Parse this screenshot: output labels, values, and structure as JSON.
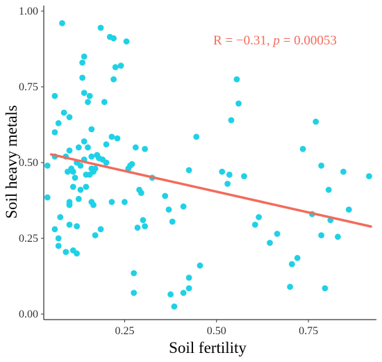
{
  "chart_data": {
    "type": "scatter",
    "xlabel": "Soil fertility",
    "ylabel": "Soil heavy metals",
    "xlim": [
      0.03,
      0.935
    ],
    "ylim": [
      0.0,
      1.0
    ],
    "xticks": [
      0.25,
      0.5,
      0.75
    ],
    "xtick_labels": [
      "0.25",
      "0.50",
      "0.75"
    ],
    "yticks": [
      0.0,
      0.25,
      0.5,
      0.75,
      1.0
    ],
    "ytick_labels": [
      "0.00",
      "0.25",
      "0.50",
      "0.75",
      "1.00"
    ],
    "grid": false,
    "point_color": "#1FD1E6",
    "line_color": "#F26B5B",
    "annotation": {
      "prefix": "R = ",
      "r_value": "−0.31",
      "sep": ", ",
      "p_symbol": "p",
      "p_eq": " = ",
      "p_value": "0.00053"
    },
    "regression": {
      "x": [
        0.05,
        0.92
      ],
      "y": [
        0.527,
        0.289
      ]
    },
    "points": [
      [
        0.04,
        0.49
      ],
      [
        0.04,
        0.385
      ],
      [
        0.06,
        0.72
      ],
      [
        0.06,
        0.6
      ],
      [
        0.06,
        0.52
      ],
      [
        0.06,
        0.28
      ],
      [
        0.07,
        0.225
      ],
      [
        0.07,
        0.25
      ],
      [
        0.07,
        0.63
      ],
      [
        0.075,
        0.32
      ],
      [
        0.08,
        0.96
      ],
      [
        0.085,
        0.665
      ],
      [
        0.09,
        0.52
      ],
      [
        0.09,
        0.205
      ],
      [
        0.095,
        0.47
      ],
      [
        0.1,
        0.54
      ],
      [
        0.1,
        0.37
      ],
      [
        0.1,
        0.295
      ],
      [
        0.1,
        0.36
      ],
      [
        0.1,
        0.65
      ],
      [
        0.105,
        0.48
      ],
      [
        0.11,
        0.21
      ],
      [
        0.11,
        0.42
      ],
      [
        0.11,
        0.47
      ],
      [
        0.115,
        0.45
      ],
      [
        0.12,
        0.5
      ],
      [
        0.12,
        0.29
      ],
      [
        0.12,
        0.2
      ],
      [
        0.125,
        0.38
      ],
      [
        0.125,
        0.55
      ],
      [
        0.13,
        0.49
      ],
      [
        0.13,
        0.41
      ],
      [
        0.135,
        0.78
      ],
      [
        0.135,
        0.83
      ],
      [
        0.14,
        0.85
      ],
      [
        0.14,
        0.73
      ],
      [
        0.14,
        0.51
      ],
      [
        0.14,
        0.57
      ],
      [
        0.145,
        0.46
      ],
      [
        0.145,
        0.42
      ],
      [
        0.15,
        0.7
      ],
      [
        0.15,
        0.55
      ],
      [
        0.155,
        0.72
      ],
      [
        0.155,
        0.46
      ],
      [
        0.16,
        0.52
      ],
      [
        0.16,
        0.48
      ],
      [
        0.16,
        0.61
      ],
      [
        0.16,
        0.37
      ],
      [
        0.165,
        0.36
      ],
      [
        0.165,
        0.47
      ],
      [
        0.17,
        0.48
      ],
      [
        0.17,
        0.26
      ],
      [
        0.175,
        0.525
      ],
      [
        0.18,
        0.515
      ],
      [
        0.185,
        0.945
      ],
      [
        0.185,
        0.28
      ],
      [
        0.19,
        0.51
      ],
      [
        0.195,
        0.7
      ],
      [
        0.2,
        0.56
      ],
      [
        0.2,
        0.5
      ],
      [
        0.21,
        0.915
      ],
      [
        0.215,
        0.585
      ],
      [
        0.215,
        0.37
      ],
      [
        0.22,
        0.91
      ],
      [
        0.22,
        0.775
      ],
      [
        0.225,
        0.815
      ],
      [
        0.23,
        0.58
      ],
      [
        0.24,
        0.82
      ],
      [
        0.25,
        0.37
      ],
      [
        0.255,
        0.9
      ],
      [
        0.26,
        0.48
      ],
      [
        0.265,
        0.49
      ],
      [
        0.27,
        0.495
      ],
      [
        0.275,
        0.07
      ],
      [
        0.275,
        0.135
      ],
      [
        0.28,
        0.55
      ],
      [
        0.285,
        0.285
      ],
      [
        0.29,
        0.41
      ],
      [
        0.295,
        0.4
      ],
      [
        0.3,
        0.31
      ],
      [
        0.305,
        0.29
      ],
      [
        0.305,
        0.545
      ],
      [
        0.325,
        0.45
      ],
      [
        0.36,
        0.39
      ],
      [
        0.37,
        0.345
      ],
      [
        0.38,
        0.305
      ],
      [
        0.375,
        0.065
      ],
      [
        0.385,
        0.025
      ],
      [
        0.41,
        0.07
      ],
      [
        0.41,
        0.355
      ],
      [
        0.425,
        0.475
      ],
      [
        0.425,
        0.085
      ],
      [
        0.425,
        0.12
      ],
      [
        0.445,
        0.585
      ],
      [
        0.455,
        0.16
      ],
      [
        0.515,
        0.47
      ],
      [
        0.53,
        0.43
      ],
      [
        0.535,
        0.46
      ],
      [
        0.54,
        0.64
      ],
      [
        0.555,
        0.775
      ],
      [
        0.56,
        0.695
      ],
      [
        0.575,
        0.455
      ],
      [
        0.605,
        0.295
      ],
      [
        0.615,
        0.32
      ],
      [
        0.645,
        0.235
      ],
      [
        0.665,
        0.265
      ],
      [
        0.7,
        0.09
      ],
      [
        0.705,
        0.165
      ],
      [
        0.72,
        0.185
      ],
      [
        0.735,
        0.545
      ],
      [
        0.76,
        0.33
      ],
      [
        0.77,
        0.635
      ],
      [
        0.785,
        0.49
      ],
      [
        0.785,
        0.26
      ],
      [
        0.795,
        0.085
      ],
      [
        0.805,
        0.41
      ],
      [
        0.81,
        0.31
      ],
      [
        0.83,
        0.255
      ],
      [
        0.845,
        0.47
      ],
      [
        0.86,
        0.345
      ],
      [
        0.915,
        0.455
      ]
    ]
  }
}
